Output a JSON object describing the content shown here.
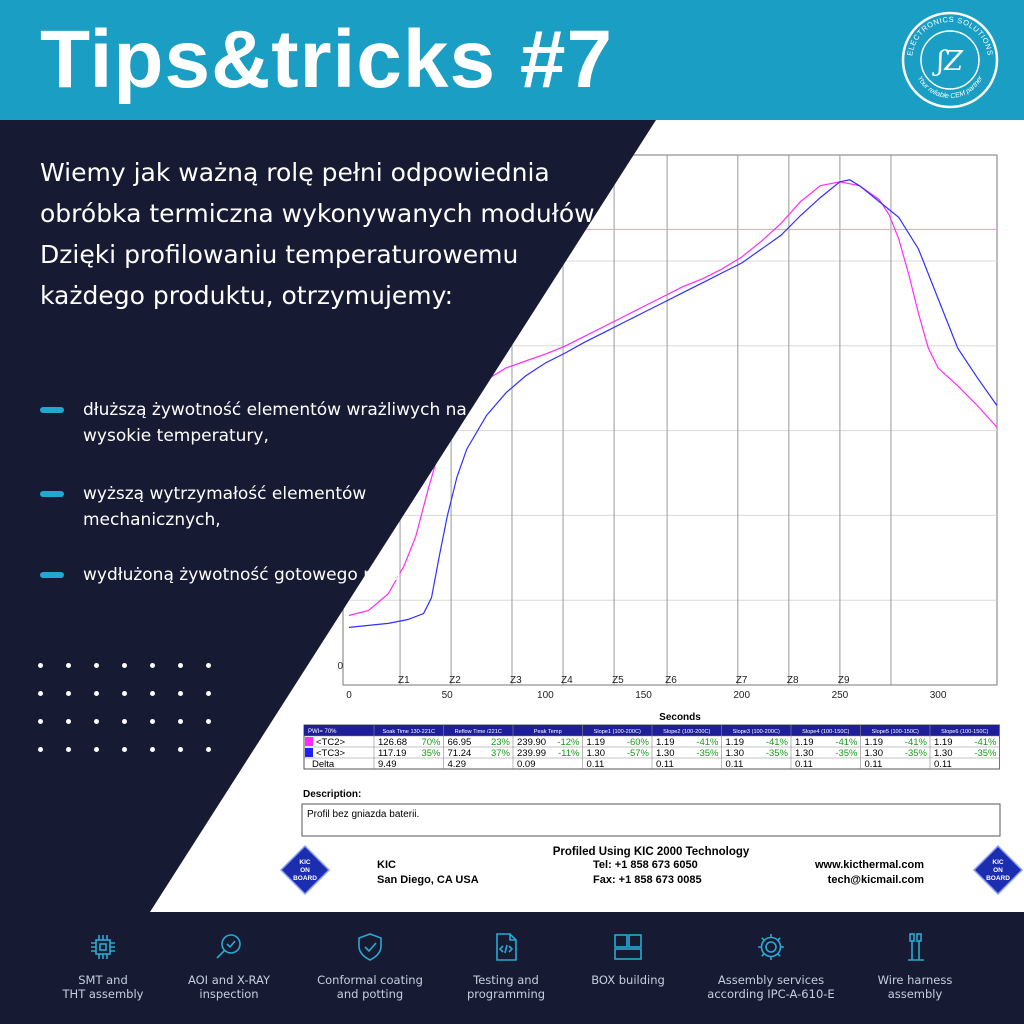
{
  "header": {
    "title": "Tips&tricks #7",
    "logo": {
      "ring_text": "ELECTRONICS SOLUTIONS",
      "monogram": "ʃZ",
      "tagline": "Your reliable CEM partner"
    }
  },
  "intro": "Wiemy jak ważną rolę pełni odpowiednia obróbka termiczna wykonywanych modułów. Dzięki profilowaniu temperaturowemu każdego produktu, otrzymujemy:",
  "bullets": [
    "dłuższą żywotność elementów wrażliwych na wysokie temperatury,",
    "wyższą wytrzymałość elementów mechanicznych,",
    "wydłużoną żywotność gotowego modułu,"
  ],
  "chart_data": {
    "type": "line",
    "xlabel": "Seconds",
    "ylabel": "",
    "xlim": [
      0,
      330
    ],
    "x_ticks": [
      0,
      50,
      100,
      150,
      200,
      250,
      300
    ],
    "y_ticks": [
      "0"
    ],
    "zones": [
      {
        "label": "Z1",
        "x": 26
      },
      {
        "label": "Z2",
        "x": 52
      },
      {
        "label": "Z3",
        "x": 83
      },
      {
        "label": "Z4",
        "x": 109
      },
      {
        "label": "Z5",
        "x": 135
      },
      {
        "label": "Z6",
        "x": 162
      },
      {
        "label": "Z7",
        "x": 198
      },
      {
        "label": "Z8",
        "x": 224
      },
      {
        "label": "Z9",
        "x": 250
      },
      {
        "label": "",
        "x": 276
      }
    ],
    "series": [
      {
        "name": "<TC2>",
        "color": "#ff2bff",
        "x": [
          0,
          10,
          20,
          28,
          34,
          40,
          45,
          50,
          55,
          60,
          70,
          80,
          90,
          100,
          110,
          120,
          130,
          140,
          150,
          160,
          170,
          180,
          190,
          200,
          210,
          220,
          230,
          240,
          250,
          260,
          270,
          275,
          280,
          285,
          290,
          295,
          300,
          310,
          320,
          330
        ],
        "y": [
          50,
          55,
          72,
          100,
          130,
          175,
          210,
          232,
          252,
          270,
          288,
          300,
          307,
          314,
          322,
          332,
          342,
          352,
          362,
          372,
          382,
          390,
          400,
          412,
          428,
          446,
          468,
          484,
          488,
          484,
          470,
          455,
          430,
          395,
          355,
          320,
          300,
          282,
          262,
          240
        ]
      },
      {
        "name": "<TC3>",
        "color": "#3030ff",
        "x": [
          0,
          10,
          20,
          30,
          38,
          42,
          46,
          50,
          55,
          60,
          70,
          80,
          90,
          100,
          110,
          120,
          130,
          140,
          150,
          160,
          170,
          180,
          190,
          200,
          210,
          220,
          230,
          240,
          250,
          255,
          260,
          265,
          270,
          280,
          290,
          300,
          310,
          320,
          330
        ],
        "y": [
          38,
          40,
          42,
          46,
          52,
          68,
          110,
          150,
          190,
          218,
          252,
          275,
          292,
          305,
          315,
          326,
          336,
          346,
          356,
          366,
          376,
          386,
          396,
          406,
          420,
          434,
          454,
          472,
          488,
          490,
          484,
          476,
          468,
          452,
          420,
          370,
          320,
          290,
          262
        ]
      }
    ],
    "reference_line": {
      "y": 440,
      "color": "#ff8cf0"
    }
  },
  "table": {
    "pwi": "PWI= 70%",
    "columns": [
      "Soak Time 130-221C",
      "Reflow Time /221C",
      "Peak Temp",
      "Slope1 (100-200C)",
      "Slope2 (100-200C)",
      "Slope3 (100-200C)",
      "Slope4 (100-150C)",
      "Slope5 (100-150C)",
      "Slope6 (100-150C)"
    ],
    "rows": [
      {
        "label": "<TC2>",
        "swatch": "#ff2bff",
        "values": [
          [
            "126.68",
            "70%"
          ],
          [
            "66.95",
            "23%"
          ],
          [
            "239.90",
            "-12%"
          ],
          [
            "1.19",
            "-60%"
          ],
          [
            "1.19",
            "-41%"
          ],
          [
            "1.19",
            "-41%"
          ],
          [
            "1.19",
            "-41%"
          ],
          [
            "1.19",
            "-41%"
          ],
          [
            "1.19",
            "-41%"
          ]
        ]
      },
      {
        "label": "<TC3>",
        "swatch": "#2020ff",
        "values": [
          [
            "117.19",
            "35%"
          ],
          [
            "71.24",
            "37%"
          ],
          [
            "239.99",
            "-11%"
          ],
          [
            "1.30",
            "-57%"
          ],
          [
            "1.30",
            "-35%"
          ],
          [
            "1.30",
            "-35%"
          ],
          [
            "1.30",
            "-35%"
          ],
          [
            "1.30",
            "-35%"
          ],
          [
            "1.30",
            "-35%"
          ]
        ]
      },
      {
        "label": "Delta",
        "swatch": "",
        "values": [
          [
            "9.49",
            ""
          ],
          [
            "4.29",
            ""
          ],
          [
            "0.09",
            ""
          ],
          [
            "0.11",
            ""
          ],
          [
            "0.11",
            ""
          ],
          [
            "0.11",
            ""
          ],
          [
            "0.11",
            ""
          ],
          [
            "0.11",
            ""
          ],
          [
            "0.11",
            ""
          ]
        ]
      }
    ]
  },
  "description": {
    "heading": "Description:",
    "text": "Profil bez gniazda baterii."
  },
  "kic": {
    "title": "Profiled Using KIC 2000 Technology",
    "company": "KIC",
    "city": "San Diego, CA USA",
    "tel": "Tel: +1 858 673 6050",
    "fax": "Fax: +1 858 673 0085",
    "web": "www.kicthermal.com",
    "email": "tech@kicmail.com",
    "badge_lines": [
      "KIC",
      "ON",
      "BOARD"
    ]
  },
  "services": [
    {
      "icon": "chip-icon",
      "lines": [
        "SMT and",
        "THT assembly"
      ]
    },
    {
      "icon": "magnifier-check-icon",
      "lines": [
        "AOI and X-RAY",
        "inspection"
      ]
    },
    {
      "icon": "shield-check-icon",
      "lines": [
        "Conformal coating",
        "and potting"
      ]
    },
    {
      "icon": "code-document-icon",
      "lines": [
        "Testing and",
        "programming"
      ]
    },
    {
      "icon": "boxes-icon",
      "lines": [
        "BOX building",
        ""
      ]
    },
    {
      "icon": "gear-icon",
      "lines": [
        "Assembly services",
        "according IPC-A-610-E"
      ]
    },
    {
      "icon": "wire-tools-icon",
      "lines": [
        "Wire harness",
        "assembly"
      ]
    }
  ],
  "colors": {
    "accent": "#1a9ec3",
    "dark": "#161b33",
    "pink": "#ff2bff",
    "blue": "#3030ff",
    "green": "#1a9a1a"
  }
}
